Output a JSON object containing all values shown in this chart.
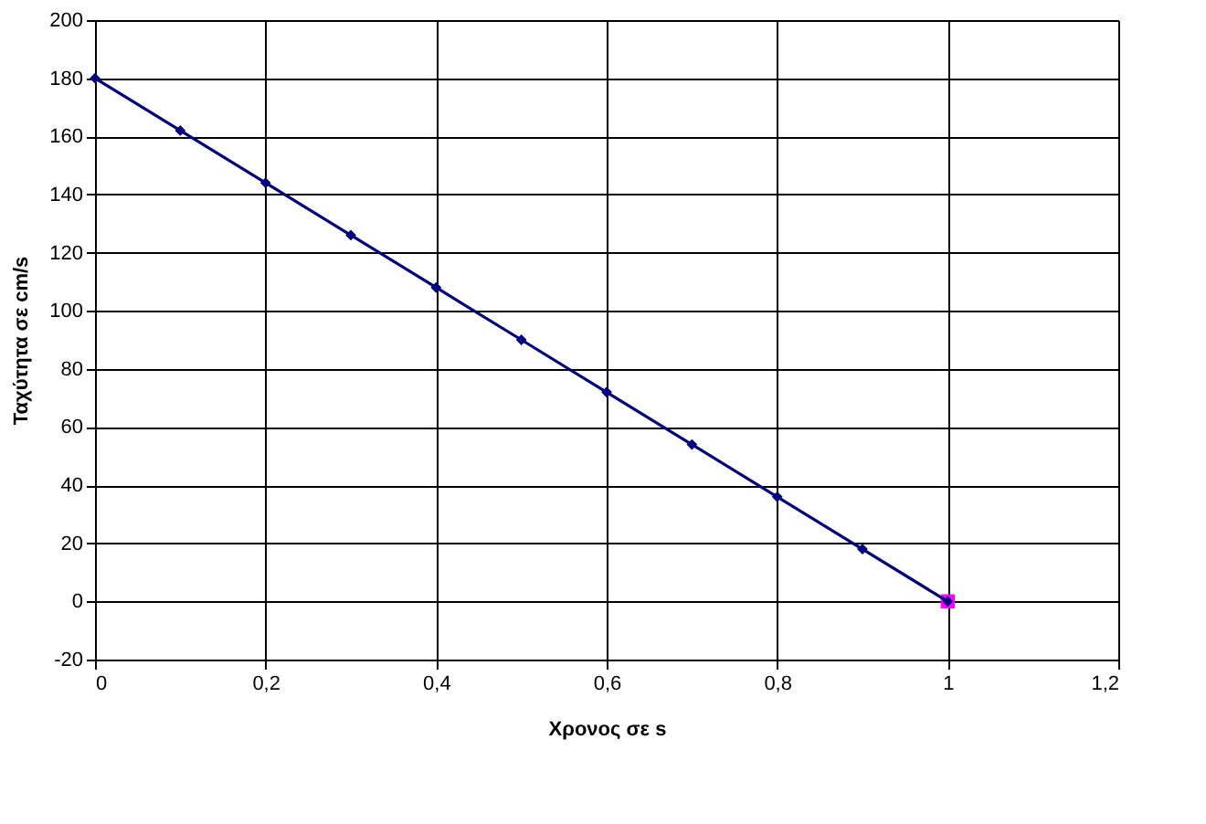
{
  "chart_data": {
    "type": "line",
    "xlabel": "Χρονος σε s",
    "ylabel": "Ταχύτητα σε  cm/s",
    "series": [
      {
        "type": "scatter",
        "marker": "square",
        "color": "#ff00ff",
        "x": [
          1
        ],
        "values": [
          0
        ]
      },
      {
        "marker": "diamond",
        "color": "#000080",
        "x": [
          0,
          0.1,
          0.2,
          0.3,
          0.4,
          0.5,
          0.6,
          0.7,
          0.8,
          0.9,
          1
        ],
        "values": [
          180,
          162,
          144,
          126,
          108,
          90,
          72,
          54,
          36,
          18,
          0
        ]
      }
    ],
    "xlim": [
      0,
      1.2
    ],
    "xticks": [
      0,
      {
        "value": 0.2,
        "label": "0,2"
      },
      {
        "value": 0.4,
        "label": "0,4"
      },
      {
        "value": 0.6,
        "label": "0,6"
      },
      {
        "value": 0.8,
        "label": "0,8"
      },
      1,
      {
        "value": 1.2,
        "label": "1,2"
      }
    ],
    "ylim": [
      -20,
      200
    ],
    "yticks": [
      -20,
      0,
      20,
      40,
      60,
      80,
      100,
      120,
      140,
      160,
      180,
      200
    ],
    "grid": true,
    "line_style": "solid"
  }
}
